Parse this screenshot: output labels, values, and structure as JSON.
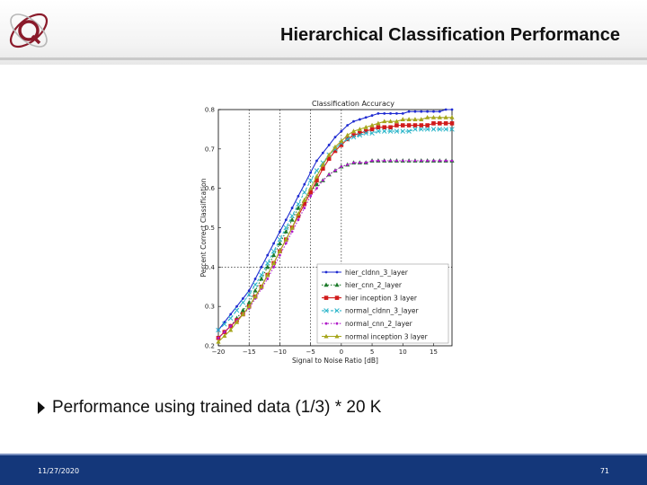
{
  "slide": {
    "title": "Hierarchical Classification Performance",
    "bullet": "Performance using trained data (1/3) * 20 K",
    "footer_date": "11/27/2020",
    "page_number": "71"
  },
  "colors": {
    "footer": "#14377a",
    "logo": "#8a1a2a"
  },
  "chart_data": {
    "type": "line",
    "title": "Classification Accuracy",
    "xlabel": "Signal to Noise Ratio [dB]",
    "ylabel": "Percent Correct Classification",
    "xlim": [
      -20,
      18
    ],
    "ylim": [
      0.2,
      0.8
    ],
    "xticks": [
      -20,
      -15,
      -10,
      -5,
      0,
      5,
      10,
      15
    ],
    "xtick_labels": [
      "−20",
      "−15",
      "−10",
      "−5",
      "0",
      "5",
      "10",
      "15"
    ],
    "yticks": [
      0.2,
      0.3,
      0.4,
      0.5,
      0.6,
      0.7,
      0.8
    ],
    "ytick_labels": [
      "0.2",
      "0.3",
      "0.4",
      "0.5",
      "0.6",
      "0.7",
      "0.8"
    ],
    "grid": "vertical dotted lines at -15, -10, -5, 0 and horizontal at 0.4",
    "legend": "lower-right",
    "x": [
      -20,
      -19,
      -18,
      -17,
      -16,
      -15,
      -14,
      -13,
      -12,
      -11,
      -10,
      -9,
      -8,
      -7,
      -6,
      -5,
      -4,
      -3,
      -2,
      -1,
      0,
      1,
      2,
      3,
      4,
      5,
      6,
      7,
      8,
      9,
      10,
      11,
      12,
      13,
      14,
      15,
      16,
      17,
      18
    ],
    "series": [
      {
        "name": "hier_cldnn_3_layer",
        "color": "#1f2bd1",
        "marker": "dot",
        "dash": "solid",
        "values": [
          0.24,
          0.26,
          0.28,
          0.3,
          0.32,
          0.34,
          0.37,
          0.4,
          0.43,
          0.46,
          0.49,
          0.52,
          0.55,
          0.58,
          0.61,
          0.64,
          0.67,
          0.69,
          0.71,
          0.73,
          0.745,
          0.76,
          0.77,
          0.775,
          0.78,
          0.785,
          0.79,
          0.79,
          0.79,
          0.79,
          0.79,
          0.795,
          0.795,
          0.795,
          0.795,
          0.795,
          0.795,
          0.8,
          0.8
        ]
      },
      {
        "name": "hier_cnn_2_layer",
        "color": "#1c7a2a",
        "marker": "triangle",
        "dash": "dotted",
        "values": [
          0.22,
          0.235,
          0.25,
          0.27,
          0.29,
          0.31,
          0.34,
          0.37,
          0.4,
          0.43,
          0.46,
          0.49,
          0.52,
          0.55,
          0.57,
          0.59,
          0.61,
          0.62,
          0.635,
          0.645,
          0.655,
          0.66,
          0.665,
          0.665,
          0.665,
          0.67,
          0.67,
          0.67,
          0.67,
          0.67,
          0.67,
          0.67,
          0.67,
          0.67,
          0.67,
          0.67,
          0.67,
          0.67,
          0.67
        ]
      },
      {
        "name": "hier inception 3 layer",
        "color": "#d11c1c",
        "marker": "square",
        "dash": "solid",
        "values": [
          0.22,
          0.235,
          0.25,
          0.265,
          0.28,
          0.3,
          0.325,
          0.35,
          0.38,
          0.41,
          0.44,
          0.47,
          0.5,
          0.53,
          0.56,
          0.59,
          0.62,
          0.65,
          0.675,
          0.695,
          0.71,
          0.725,
          0.735,
          0.74,
          0.745,
          0.75,
          0.755,
          0.755,
          0.755,
          0.76,
          0.76,
          0.76,
          0.76,
          0.76,
          0.76,
          0.765,
          0.765,
          0.765,
          0.765
        ]
      },
      {
        "name": "normal_cldnn_3_layer",
        "color": "#2bb5c9",
        "marker": "x",
        "dash": "dashed",
        "values": [
          0.24,
          0.255,
          0.27,
          0.29,
          0.31,
          0.33,
          0.355,
          0.38,
          0.41,
          0.44,
          0.47,
          0.5,
          0.53,
          0.56,
          0.59,
          0.62,
          0.645,
          0.665,
          0.685,
          0.7,
          0.715,
          0.725,
          0.73,
          0.735,
          0.74,
          0.74,
          0.745,
          0.745,
          0.745,
          0.745,
          0.745,
          0.745,
          0.75,
          0.75,
          0.75,
          0.75,
          0.75,
          0.75,
          0.75
        ]
      },
      {
        "name": "normal_cnn_2_layer",
        "color": "#b01cc9",
        "marker": "dot",
        "dash": "dotted",
        "values": [
          0.22,
          0.235,
          0.25,
          0.265,
          0.28,
          0.295,
          0.32,
          0.345,
          0.37,
          0.4,
          0.43,
          0.46,
          0.49,
          0.52,
          0.55,
          0.58,
          0.6,
          0.62,
          0.635,
          0.645,
          0.655,
          0.66,
          0.665,
          0.665,
          0.665,
          0.67,
          0.67,
          0.67,
          0.67,
          0.67,
          0.67,
          0.67,
          0.67,
          0.67,
          0.67,
          0.67,
          0.67,
          0.67,
          0.67
        ]
      },
      {
        "name": "normal inception 3 layer",
        "color": "#a6a61c",
        "marker": "triangle",
        "dash": "solid",
        "values": [
          0.21,
          0.225,
          0.24,
          0.26,
          0.28,
          0.3,
          0.325,
          0.35,
          0.38,
          0.41,
          0.44,
          0.47,
          0.5,
          0.535,
          0.57,
          0.6,
          0.63,
          0.66,
          0.685,
          0.705,
          0.72,
          0.735,
          0.745,
          0.75,
          0.755,
          0.76,
          0.765,
          0.77,
          0.77,
          0.77,
          0.775,
          0.775,
          0.775,
          0.775,
          0.78,
          0.78,
          0.78,
          0.78,
          0.78
        ]
      }
    ]
  }
}
